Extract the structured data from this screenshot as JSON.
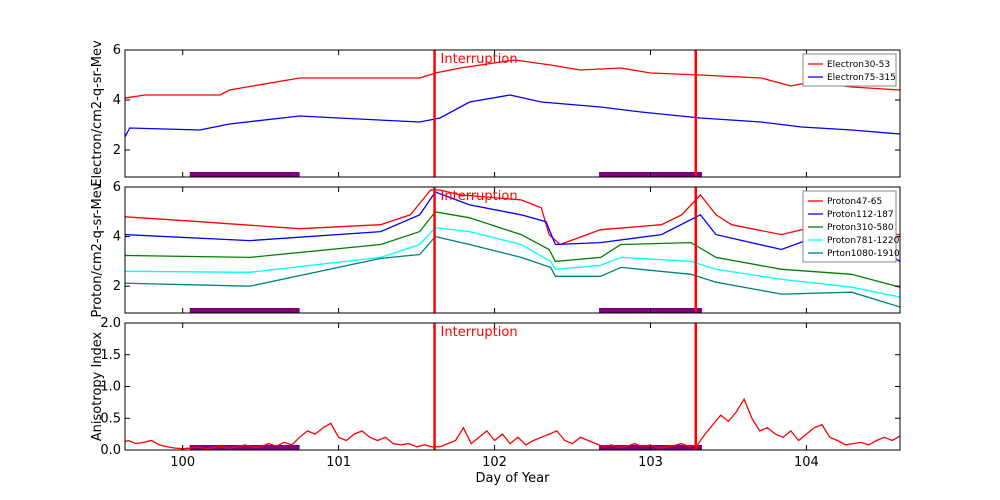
{
  "chart_data": [
    {
      "type": "line",
      "ylabel": "Electron/cm2-q-sr-Mev",
      "xlim": [
        99.63,
        104.6
      ],
      "ylim": [
        0.92,
        6
      ],
      "yticks": [
        2,
        4,
        6
      ],
      "ytick_labels": [
        "2",
        "4",
        "6"
      ],
      "legend_placement": "top-right",
      "series": [
        {
          "name": "Electron30-53",
          "color": "#ff0000",
          "x": [
            99.63,
            99.76,
            100.24,
            100.3,
            100.75,
            101.52,
            101.62,
            101.78,
            102.04,
            102.13,
            102.36,
            102.55,
            102.81,
            103.0,
            103.32,
            103.71,
            103.9,
            104.03,
            104.29,
            104.6
          ],
          "y": [
            4.08,
            4.2,
            4.2,
            4.4,
            4.88,
            4.88,
            5.08,
            5.28,
            5.52,
            5.6,
            5.4,
            5.2,
            5.28,
            5.08,
            5.0,
            4.88,
            4.56,
            4.72,
            4.52,
            4.4
          ]
        },
        {
          "name": "Electron75-315",
          "color": "#0000ff",
          "x": [
            99.63,
            99.66,
            100.11,
            100.3,
            100.75,
            101.0,
            101.52,
            101.65,
            101.84,
            102.1,
            102.3,
            102.68,
            102.94,
            103.32,
            103.71,
            103.97,
            104.29,
            104.6
          ],
          "y": [
            2.52,
            2.88,
            2.8,
            3.04,
            3.36,
            3.28,
            3.12,
            3.28,
            3.92,
            4.2,
            3.92,
            3.72,
            3.52,
            3.28,
            3.12,
            2.92,
            2.8,
            2.64
          ]
        }
      ]
    },
    {
      "type": "line",
      "ylabel": "Proton/cm2-q-sr-Mev",
      "xlim": [
        99.63,
        104.6
      ],
      "ylim": [
        0.92,
        6
      ],
      "yticks": [
        2,
        4,
        6
      ],
      "ytick_labels": [
        "2",
        "4",
        "6"
      ],
      "legend_placement": "top-right",
      "series": [
        {
          "name": "Proton47-65",
          "color": "#ff0000",
          "x": [
            99.63,
            100.11,
            100.75,
            101.27,
            101.46,
            101.59,
            101.65,
            101.78,
            102.17,
            102.3,
            102.35,
            102.42,
            102.68,
            103.07,
            103.2,
            103.32,
            103.42,
            103.52,
            103.84,
            104.1,
            104.36,
            104.6
          ],
          "y": [
            4.8,
            4.6,
            4.32,
            4.48,
            4.88,
            5.88,
            5.88,
            5.68,
            5.48,
            5.16,
            4.08,
            3.68,
            4.28,
            4.48,
            4.88,
            5.68,
            4.88,
            4.48,
            4.08,
            4.48,
            4.2,
            4.08
          ]
        },
        {
          "name": "Proton112-187",
          "color": "#0000ff",
          "x": [
            99.63,
            100.43,
            101.27,
            101.52,
            101.62,
            101.84,
            102.17,
            102.33,
            102.39,
            102.68,
            103.07,
            103.32,
            103.42,
            103.84,
            104.1,
            104.42,
            104.6
          ],
          "y": [
            4.08,
            3.84,
            4.2,
            4.88,
            5.8,
            5.28,
            4.88,
            4.6,
            3.68,
            3.76,
            4.08,
            4.88,
            4.08,
            3.48,
            4.08,
            3.68,
            3.0
          ]
        },
        {
          "name": "Proton310-580",
          "color": "#008000",
          "x": [
            99.63,
            100.43,
            101.27,
            101.52,
            101.62,
            101.84,
            102.17,
            102.35,
            102.39,
            102.68,
            102.81,
            103.26,
            103.42,
            103.84,
            104.29,
            104.6
          ],
          "y": [
            3.24,
            3.16,
            3.68,
            4.2,
            5.0,
            4.76,
            4.08,
            3.48,
            3.0,
            3.16,
            3.68,
            3.76,
            3.16,
            2.68,
            2.48,
            1.96
          ]
        },
        {
          "name": "Proton781-1220",
          "color": "#00ffff",
          "x": [
            99.63,
            100.43,
            101.27,
            101.52,
            101.62,
            101.84,
            102.17,
            102.36,
            102.39,
            102.68,
            102.81,
            103.26,
            103.42,
            103.84,
            104.29,
            104.6
          ],
          "y": [
            2.6,
            2.56,
            3.16,
            3.68,
            4.36,
            4.2,
            3.68,
            3.0,
            2.68,
            2.84,
            3.16,
            3.0,
            2.68,
            2.28,
            1.96,
            1.56
          ]
        },
        {
          "name": "Prton1080-1910",
          "color": "#008080",
          "x": [
            99.63,
            100.43,
            101.27,
            101.52,
            101.62,
            101.84,
            102.17,
            102.36,
            102.39,
            102.68,
            102.81,
            103.26,
            103.42,
            103.84,
            104.29,
            104.6
          ],
          "y": [
            2.12,
            2.0,
            3.12,
            3.28,
            4.0,
            3.68,
            3.16,
            2.76,
            2.4,
            2.4,
            2.76,
            2.48,
            2.16,
            1.68,
            1.76,
            1.16
          ]
        }
      ]
    },
    {
      "type": "line",
      "ylabel": "Anisotropy Index",
      "xlabel": "Day of Year",
      "xlim": [
        99.63,
        104.6
      ],
      "ylim": [
        0,
        2
      ],
      "yticks": [
        0,
        0.5,
        1,
        1.5,
        2
      ],
      "ytick_labels": [
        "0.0",
        "0.5",
        "1.0",
        "1.5",
        "2.0"
      ],
      "xticks": [
        100,
        101,
        102,
        103,
        104
      ],
      "xtick_labels": [
        "100",
        "101",
        "102",
        "103",
        "104"
      ],
      "series": [
        {
          "color": "#ff0000",
          "x_start": 99.6,
          "x_step": 0.05,
          "y": [
            0.1,
            0.15,
            0.1,
            0.12,
            0.15,
            0.08,
            0.05,
            0.03,
            0.02,
            0.03,
            0.05,
            0.02,
            0.04,
            0.06,
            0.03,
            0.05,
            0.08,
            0.04,
            0.05,
            0.1,
            0.06,
            0.12,
            0.08,
            0.2,
            0.3,
            0.25,
            0.35,
            0.42,
            0.2,
            0.15,
            0.25,
            0.3,
            0.2,
            0.15,
            0.2,
            0.1,
            0.08,
            0.1,
            0.05,
            0.08,
            0.05,
            0.05,
            0.1,
            0.15,
            0.35,
            0.1,
            0.2,
            0.3,
            0.15,
            0.25,
            0.1,
            0.2,
            0.08,
            0.15,
            0.2,
            0.25,
            0.3,
            0.15,
            0.1,
            0.2,
            0.15,
            0.1,
            0.05,
            0.08,
            0.04,
            0.06,
            0.1,
            0.05,
            0.08,
            0.03,
            0.05,
            0.07,
            0.1,
            0.05,
            0.08,
            0.25,
            0.4,
            0.55,
            0.45,
            0.6,
            0.8,
            0.5,
            0.3,
            0.35,
            0.25,
            0.2,
            0.3,
            0.15,
            0.25,
            0.35,
            0.4,
            0.2,
            0.15,
            0.08,
            0.1,
            0.12,
            0.08,
            0.15,
            0.2,
            0.15,
            0.22
          ]
        }
      ]
    }
  ],
  "interruptions": {
    "label": "Interruption",
    "days": [
      101.615,
      103.29
    ],
    "color": "#ff0000"
  },
  "gap_bars": {
    "color": "#800080",
    "ranges": [
      [
        100.045,
        100.75
      ],
      [
        102.67,
        103.33
      ]
    ]
  }
}
